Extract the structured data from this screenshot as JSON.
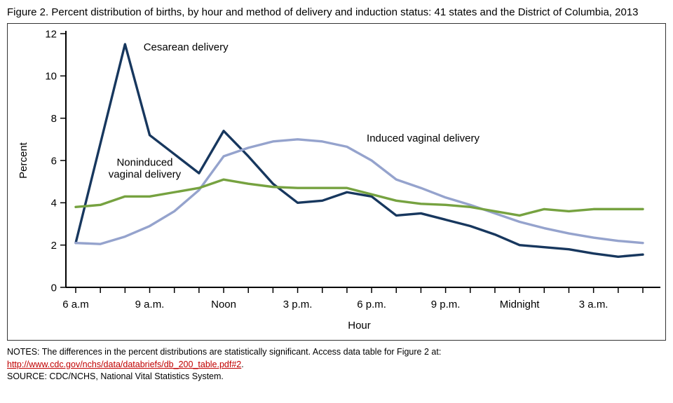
{
  "title": "Figure 2. Percent distribution of births, by hour and method of delivery and induction status: 41 states and the District of Columbia, 2013",
  "notes": {
    "line1": "NOTES: The differences in the percent distributions are statistically significant. Access data table for Figure 2 at:",
    "link": "http://www.cdc.gov/nchs/data/databriefs/db_200_table.pdf#2",
    "link_suffix": ".",
    "link_color": "#c00000",
    "source": "SOURCE: CDC/NCHS, National Vital Statistics System."
  },
  "chart_data": {
    "type": "line",
    "xlabel": "Hour",
    "ylabel": "Percent",
    "ylim": [
      0,
      12
    ],
    "y_ticks": [
      0,
      2,
      4,
      6,
      8,
      10,
      12
    ],
    "grid": false,
    "legend_position": "inline-annotations",
    "x_hours": [
      "6 a.m.",
      "7 a.m.",
      "8 a.m.",
      "9 a.m.",
      "10 a.m.",
      "11 a.m.",
      "Noon",
      "1 p.m.",
      "2 p.m.",
      "3 p.m.",
      "4 p.m.",
      "5 p.m.",
      "6 p.m.",
      "7 p.m.",
      "8 p.m.",
      "9 p.m.",
      "10 p.m.",
      "11 p.m.",
      "Midnight",
      "1 a.m.",
      "2 a.m.",
      "3 a.m.",
      "4 a.m.",
      "5 a.m."
    ],
    "x_ticks_labeled": [
      {
        "i": 0,
        "label": "6 a.m"
      },
      {
        "i": 3,
        "label": "9 a.m."
      },
      {
        "i": 6,
        "label": "Noon"
      },
      {
        "i": 9,
        "label": "3 p.m."
      },
      {
        "i": 12,
        "label": "6 p.m."
      },
      {
        "i": 15,
        "label": "9 p.m."
      },
      {
        "i": 18,
        "label": "Midnight"
      },
      {
        "i": 21,
        "label": "3 a.m."
      }
    ],
    "series": [
      {
        "name": "Cesarean delivery",
        "color": "#17375e",
        "values": [
          2.1,
          6.8,
          11.5,
          7.2,
          6.3,
          5.4,
          7.4,
          6.2,
          4.9,
          4.0,
          4.1,
          4.5,
          4.3,
          3.4,
          3.5,
          3.2,
          2.9,
          2.5,
          2.0,
          1.9,
          1.8,
          1.6,
          1.45,
          1.55
        ]
      },
      {
        "name": "Induced vaginal delivery",
        "color": "#95a3cd",
        "values": [
          2.1,
          2.05,
          2.4,
          2.9,
          3.6,
          4.6,
          6.2,
          6.6,
          6.9,
          7.0,
          6.9,
          6.65,
          6.0,
          5.1,
          4.7,
          4.25,
          3.9,
          3.5,
          3.1,
          2.8,
          2.55,
          2.35,
          2.2,
          2.1
        ]
      },
      {
        "name": "Noninduced vaginal delivery",
        "color": "#76a240",
        "values": [
          3.8,
          3.9,
          4.3,
          4.3,
          4.5,
          4.7,
          5.1,
          4.9,
          4.75,
          4.7,
          4.7,
          4.7,
          4.4,
          4.1,
          3.95,
          3.9,
          3.8,
          3.6,
          3.4,
          3.7,
          3.6,
          3.7,
          3.7,
          3.7
        ]
      }
    ],
    "annotations": [
      {
        "id": "cesarean-delivery",
        "lines": [
          "Cesarean delivery"
        ],
        "xi": 2.75,
        "y": 11.2,
        "anchor": "start"
      },
      {
        "id": "induced-vaginal-delivery",
        "lines": [
          "Induced vaginal delivery"
        ],
        "xi": 11.8,
        "y": 6.9,
        "anchor": "start"
      },
      {
        "id": "noninduced-vaginal-delivery",
        "lines": [
          "Noninduced",
          "vaginal delivery"
        ],
        "xi": 2.8,
        "y": 5.75,
        "anchor": "middle"
      }
    ]
  }
}
